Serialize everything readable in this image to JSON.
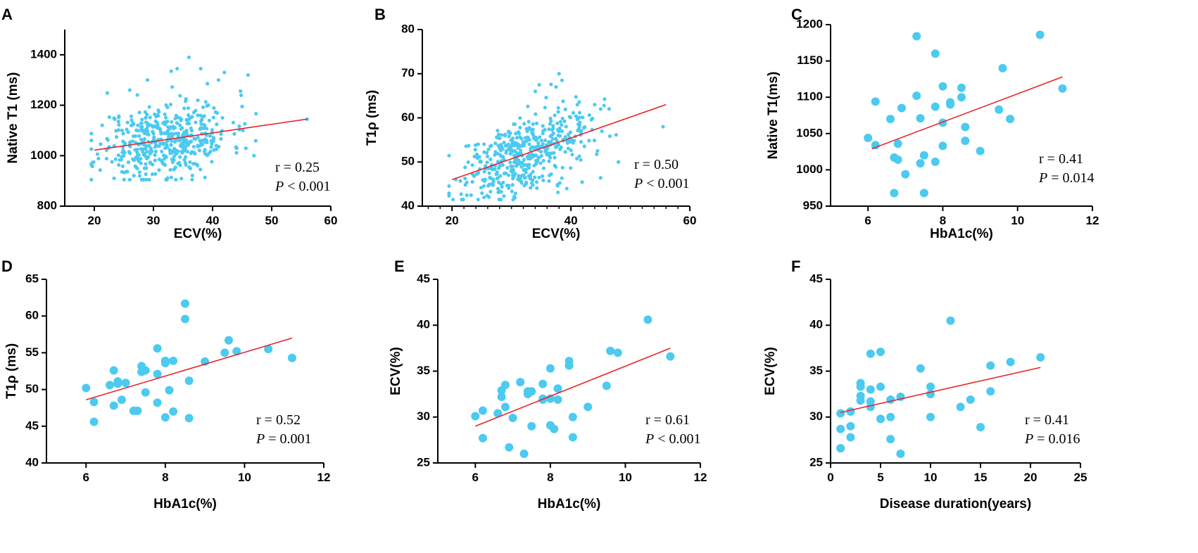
{
  "colors": {
    "point": "#4ccaf0",
    "fit_line": "#e8242b",
    "axis": "#000000"
  },
  "chart_data": [
    {
      "panel": "A",
      "type": "scatter",
      "xlabel": "ECV(%)",
      "ylabel": "Native T1 (ms)",
      "xlim": [
        15,
        60
      ],
      "ylim": [
        800,
        1500
      ],
      "xticks": [
        20,
        30,
        40,
        50,
        60
      ],
      "yticks": [
        800,
        1000,
        1200,
        1400
      ],
      "minor_x": false,
      "point_radius": 2.6,
      "fit_line": {
        "x": [
          20,
          56
        ],
        "y": [
          1022,
          1145
        ]
      },
      "stats": {
        "r_text": "r = 0.25",
        "p_label": "P",
        "p_text": " < 0.001"
      },
      "generated_cloud": {
        "n": 480,
        "x_center": 32,
        "x_sd": 5.5,
        "slope": 3.4,
        "intercept": 955,
        "y_sd": 75,
        "x_min": 19.5,
        "x_max": 56,
        "y_min": 905,
        "y_max": 1395,
        "seed": 11
      },
      "x": [
        36,
        34,
        38,
        41,
        42,
        46,
        45,
        47,
        56,
        29,
        33,
        26
      ],
      "y": [
        1390,
        1345,
        1345,
        1300,
        1330,
        1320,
        1195,
        1000,
        1145,
        1300,
        1335,
        1260
      ]
    },
    {
      "panel": "B",
      "type": "scatter",
      "xlabel": "ECV(%)",
      "ylabel": "T1ρ (ms)",
      "xlim": [
        15,
        60
      ],
      "ylim": [
        40,
        80
      ],
      "xticks": [
        20,
        40,
        60
      ],
      "yticks": [
        40,
        50,
        60,
        70,
        80
      ],
      "minor_x": true,
      "point_radius": 2.6,
      "fit_line": {
        "x": [
          20,
          56
        ],
        "y": [
          46,
          63
        ]
      },
      "stats": {
        "r_text": "r = 0.50",
        "p_label": "P",
        "p_text": " < 0.001"
      },
      "generated_cloud": {
        "n": 480,
        "x_center": 32,
        "x_sd": 5.5,
        "slope": 0.47,
        "intercept": 36.5,
        "y_sd": 4.3,
        "x_min": 19.5,
        "x_max": 56,
        "y_min": 41.5,
        "y_max": 70,
        "seed": 29
      },
      "x": [
        38,
        38.5,
        37.5,
        34,
        48,
        55.5,
        44,
        45
      ],
      "y": [
        70,
        68.5,
        67,
        66,
        50,
        58,
        63,
        62
      ]
    },
    {
      "panel": "C",
      "type": "scatter",
      "xlabel": "HbA1c(%)",
      "ylabel": "Native T1(ms)",
      "xlim": [
        5,
        12
      ],
      "ylim": [
        950,
        1200
      ],
      "xticks": [
        6,
        8,
        10,
        12
      ],
      "yticks": [
        950,
        1000,
        1050,
        1100,
        1150,
        1200
      ],
      "minor_x": false,
      "point_radius": 6,
      "fit_line": {
        "x": [
          6.1,
          11.2
        ],
        "y": [
          1029,
          1128
        ]
      },
      "stats": {
        "r_text": "r = 0.41",
        "p_label": "P",
        "p_text": " = 0.014"
      },
      "x": [
        6.0,
        6.2,
        6.2,
        6.6,
        6.7,
        6.7,
        6.8,
        6.8,
        6.9,
        7.0,
        7.3,
        7.3,
        7.4,
        7.4,
        7.5,
        7.5,
        7.8,
        7.8,
        7.8,
        8.0,
        8.0,
        8.0,
        8.2,
        8.2,
        8.5,
        8.5,
        8.6,
        8.6,
        9.0,
        9.5,
        9.6,
        9.8,
        10.6,
        11.2
      ],
      "y": [
        1044,
        1034,
        1094,
        1070,
        1017,
        968,
        1036,
        1014,
        1085,
        994,
        1102,
        1184,
        1071,
        1009,
        1020,
        968,
        1160,
        1087,
        1011,
        1115,
        1065,
        1033,
        1093,
        1090,
        1113,
        1100,
        1059,
        1040,
        1026,
        1083,
        1140,
        1070,
        1186,
        1112
      ]
    },
    {
      "panel": "D",
      "type": "scatter",
      "xlabel": "HbA1c(%)",
      "ylabel": "T1ρ (ms)",
      "xlim": [
        5,
        12
      ],
      "ylim": [
        40,
        65
      ],
      "xticks": [
        6,
        8,
        10,
        12
      ],
      "yticks": [
        40,
        45,
        50,
        55,
        60,
        65
      ],
      "minor_x": false,
      "point_radius": 6,
      "fit_line": {
        "x": [
          6.0,
          11.2
        ],
        "y": [
          48.6,
          57.0
        ]
      },
      "stats": {
        "r_text": "r = 0.52",
        "p_label": "P",
        "p_text": " = 0.001"
      },
      "x": [
        6.0,
        6.2,
        6.2,
        6.6,
        6.7,
        6.7,
        6.8,
        6.8,
        6.9,
        7.0,
        7.2,
        7.3,
        7.4,
        7.4,
        7.5,
        7.5,
        7.8,
        7.8,
        7.8,
        8.0,
        8.0,
        8.0,
        8.1,
        8.2,
        8.2,
        8.5,
        8.5,
        8.6,
        8.6,
        9.0,
        9.5,
        9.6,
        9.8,
        10.6,
        11.2
      ],
      "y": [
        50.2,
        48.3,
        45.6,
        50.6,
        52.6,
        47.8,
        51.1,
        50.8,
        48.6,
        50.9,
        47.1,
        47.1,
        53.2,
        52.4,
        52.6,
        49.6,
        55.6,
        52.1,
        48.2,
        53.9,
        53.6,
        46.2,
        49.9,
        53.9,
        47.0,
        61.7,
        59.6,
        51.2,
        46.1,
        53.8,
        55.0,
        56.7,
        55.2,
        55.5,
        54.3
      ]
    },
    {
      "panel": "E",
      "type": "scatter",
      "xlabel": "HbA1c(%)",
      "ylabel": "ECV(%)",
      "xlim": [
        5,
        12
      ],
      "ylim": [
        25,
        45
      ],
      "xticks": [
        6,
        8,
        10,
        12
      ],
      "yticks": [
        25,
        30,
        35,
        40,
        45
      ],
      "minor_x": false,
      "point_radius": 6,
      "fit_line": {
        "x": [
          6.0,
          11.2
        ],
        "y": [
          29.0,
          37.5
        ]
      },
      "stats": {
        "r_text": "r = 0.61",
        "p_label": "P",
        "p_text": " < 0.001"
      },
      "x": [
        6.0,
        6.2,
        6.2,
        6.6,
        6.7,
        6.7,
        6.8,
        6.8,
        6.9,
        7.0,
        7.2,
        7.3,
        7.4,
        7.4,
        7.5,
        7.5,
        7.8,
        7.8,
        7.8,
        8.0,
        8.0,
        8.0,
        8.1,
        8.2,
        8.2,
        8.5,
        8.5,
        8.6,
        8.6,
        9.0,
        9.5,
        9.6,
        9.8,
        10.6,
        11.2
      ],
      "y": [
        30.1,
        30.7,
        27.7,
        30.4,
        32.9,
        32.2,
        33.5,
        31.1,
        26.7,
        29.9,
        33.8,
        26.0,
        32.5,
        32.8,
        32.8,
        29.0,
        33.6,
        31.9,
        32.0,
        35.3,
        32.0,
        29.1,
        28.7,
        33.1,
        31.9,
        36.1,
        35.6,
        30.0,
        27.8,
        31.1,
        33.4,
        37.2,
        37.0,
        40.6,
        36.6
      ]
    },
    {
      "panel": "F",
      "type": "scatter",
      "xlabel": "Disease duration(years)",
      "ylabel": "ECV(%)",
      "xlim": [
        0,
        25
      ],
      "ylim": [
        25,
        45
      ],
      "xticks": [
        0,
        5,
        10,
        15,
        20,
        25
      ],
      "yticks": [
        25,
        30,
        35,
        40,
        45
      ],
      "minor_x": false,
      "point_radius": 6,
      "fit_line": {
        "x": [
          1,
          21
        ],
        "y": [
          30.5,
          35.4
        ]
      },
      "stats": {
        "r_text": "r = 0.41",
        "p_label": "P",
        "p_text": " = 0.016"
      },
      "x": [
        1,
        1,
        1,
        1,
        2,
        2,
        2,
        2,
        3,
        3,
        3,
        3,
        4,
        4,
        4,
        4,
        5,
        5,
        5,
        5,
        6,
        6,
        6,
        7,
        7,
        9,
        10,
        10,
        10,
        12,
        13,
        14,
        15,
        16,
        16,
        18,
        21
      ],
      "y": [
        30.4,
        28.7,
        26.6,
        26.6,
        30.6,
        29.0,
        27.8,
        30.6,
        33.7,
        33.3,
        32.3,
        31.8,
        36.9,
        33.0,
        31.7,
        31.1,
        37.1,
        33.3,
        29.8,
        29.8,
        31.9,
        30.0,
        27.6,
        32.2,
        26.0,
        35.3,
        33.3,
        32.5,
        30.0,
        40.5,
        31.1,
        31.9,
        28.9,
        35.6,
        32.8,
        36.0,
        36.5
      ]
    }
  ]
}
